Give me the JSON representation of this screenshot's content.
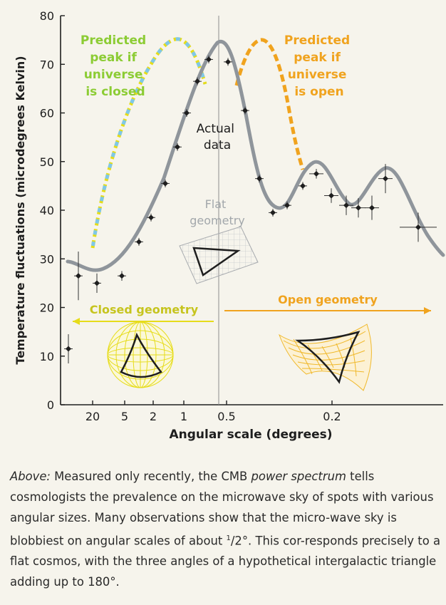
{
  "chart_data": {
    "type": "line",
    "xlabel": "Angular scale (degrees)",
    "ylabel": "Temperature fluctuations (microdegrees Kelvin)",
    "x_tick_labels": [
      "20",
      "5",
      "2",
      "1",
      "0.5",
      "0.2"
    ],
    "y_tick_labels": [
      "0",
      "10",
      "20",
      "30",
      "40",
      "50",
      "60",
      "70",
      "80"
    ],
    "ylim": [
      0,
      80
    ],
    "grid": false,
    "series": [
      {
        "name": "Actual data",
        "kind": "points",
        "points": [
          {
            "x": "",
            "y": 11.5,
            "err": 3
          },
          {
            "x": "",
            "y": 26.5,
            "err": 5
          },
          {
            "x": "",
            "y": 25,
            "err": 2
          },
          {
            "x": "5",
            "y": 26.5,
            "err": 1
          },
          {
            "x": "2",
            "y": 33.5,
            "err": 0.8
          },
          {
            "x": "",
            "y": 38.5,
            "err": 0.8
          },
          {
            "x": "",
            "y": 45.5,
            "err": 0.8
          },
          {
            "x": "1",
            "y": 53,
            "err": 0.8
          },
          {
            "x": "",
            "y": 60,
            "err": 0.8
          },
          {
            "x": "",
            "y": 66.5,
            "err": 0.8
          },
          {
            "x": "",
            "y": 71,
            "err": 0.8
          },
          {
            "x": "0.5",
            "y": 70.5,
            "err": 0.8
          },
          {
            "x": "",
            "y": 60.5,
            "err": 0.8
          },
          {
            "x": "",
            "y": 46.5,
            "err": 0.8
          },
          {
            "x": "",
            "y": 39.5,
            "err": 0.8
          },
          {
            "x": "",
            "y": 41,
            "err": 0.8
          },
          {
            "x": "",
            "y": 45,
            "err": 0.8
          },
          {
            "x": "",
            "y": 47.5,
            "err": 1
          },
          {
            "x": "0.2",
            "y": 43,
            "err": 1.5
          },
          {
            "x": "",
            "y": 41,
            "err": 2
          },
          {
            "x": "",
            "y": 40.5,
            "err": 2
          },
          {
            "x": "",
            "y": 40.5,
            "err": 2.5
          },
          {
            "x": "",
            "y": 46.5,
            "err": 3
          },
          {
            "x": "",
            "y": 36.5,
            "err": 3
          }
        ]
      },
      {
        "name": "Flat geometry",
        "kind": "curve",
        "peak": 75,
        "samples": [
          29.5,
          28,
          27.5,
          30,
          35,
          45,
          60,
          72,
          75,
          69,
          52,
          41.5,
          42,
          48,
          49.5,
          44,
          41,
          46,
          48.5,
          42,
          35,
          30.5
        ]
      },
      {
        "name": "Predicted peak if universe is closed",
        "kind": "dashed",
        "peak": 75
      },
      {
        "name": "Predicted peak if universe is open",
        "kind": "dashed",
        "peak": 75
      }
    ],
    "annotations": {
      "closed_label": "Predicted\npeak if\nuniverse\nis closed",
      "open_label": "Predicted\npeak if\nuniverse\nis open",
      "actual_label": "Actual\ndata",
      "flat_label": "Flat\ngeometry",
      "closed_geometry": "Closed geometry",
      "open_geometry": "Open geometry"
    }
  },
  "colors": {
    "yellow": "#e6dc1a",
    "cyan": "#7fc8e8",
    "orange": "#f0a31e",
    "curve": "#8f959b",
    "grid_grey": "#b8bcc0",
    "axis": "#1e1e1e"
  },
  "caption": {
    "lead": "Above:",
    "part1": " Measured only recently, the CMB ",
    "term": "power spectrum",
    "part2": " tells cosmologists the prevalence on the microwave sky of spots with various angular sizes. Many observations show that the micro-wave sky is blobbiest on angular scales of about ",
    "frac_num": "1",
    "frac_slash": "/",
    "frac_den": "2",
    "part3": "°. This cor-responds precisely to a flat cosmos, with the three angles of a hypothetical intergalactic triangle adding up to 180°."
  }
}
